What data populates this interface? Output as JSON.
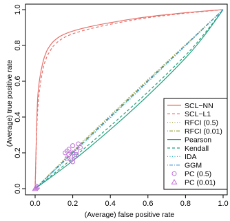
{
  "chart_data": {
    "type": "line",
    "xlabel": "(Average) false positive rate",
    "ylabel": "(Average) true positive rate",
    "xlim": [
      0,
      1
    ],
    "ylim": [
      0,
      1
    ],
    "x_ticks": [
      "0.0",
      "0.2",
      "0.4",
      "0.6",
      "0.8",
      "1.0"
    ],
    "y_ticks": [
      "0.0",
      "0.2",
      "0.4",
      "0.6",
      "0.8",
      "1.0"
    ],
    "grid": false,
    "legend_position": "bottom-right",
    "series": [
      {
        "name": "SCL−NN",
        "kind": "line",
        "color": "#e8706a",
        "dash": "solid",
        "x": [
          0,
          0.01,
          0.02,
          0.04,
          0.06,
          0.08,
          0.1,
          0.14,
          0.2,
          0.3,
          0.4,
          0.5,
          0.6,
          0.7,
          0.8,
          0.9,
          1.0
        ],
        "y": [
          0,
          0.42,
          0.58,
          0.7,
          0.765,
          0.8,
          0.825,
          0.855,
          0.88,
          0.907,
          0.927,
          0.945,
          0.96,
          0.972,
          0.983,
          0.992,
          1.0
        ]
      },
      {
        "name": "SCL−L1",
        "kind": "line",
        "color": "#e8706a",
        "dash": "dashed",
        "x": [
          0,
          0.01,
          0.02,
          0.04,
          0.06,
          0.08,
          0.1,
          0.14,
          0.2,
          0.3,
          0.4,
          0.5,
          0.6,
          0.7,
          0.8,
          0.9,
          1.0
        ],
        "y": [
          0,
          0.36,
          0.52,
          0.66,
          0.73,
          0.77,
          0.8,
          0.835,
          0.865,
          0.895,
          0.918,
          0.938,
          0.955,
          0.968,
          0.98,
          0.99,
          1.0
        ]
      },
      {
        "name": "RFCI (0.5)",
        "kind": "line",
        "color": "#8f9a2e",
        "dash": "dotted",
        "x": [
          0,
          0.2,
          0.4,
          0.6,
          0.8,
          1.0
        ],
        "y": [
          0,
          0.21,
          0.41,
          0.61,
          0.805,
          1.0
        ]
      },
      {
        "name": "RFCI (0.01)",
        "kind": "line",
        "color": "#8f9a2e",
        "dash": "dotdash",
        "x": [
          0,
          0.2,
          0.4,
          0.6,
          0.8,
          1.0
        ],
        "y": [
          0,
          0.205,
          0.405,
          0.605,
          0.802,
          1.0
        ]
      },
      {
        "name": "Pearson",
        "kind": "line",
        "color": "#1fa07a",
        "dash": "solid",
        "x": [
          0,
          0.2,
          0.4,
          0.6,
          0.8,
          0.9,
          1.0
        ],
        "y": [
          0,
          0.155,
          0.33,
          0.52,
          0.73,
          0.855,
          1.0
        ]
      },
      {
        "name": "Kendall",
        "kind": "line",
        "color": "#1fa07a",
        "dash": "dashed",
        "x": [
          0,
          0.2,
          0.4,
          0.6,
          0.8,
          0.9,
          1.0
        ],
        "y": [
          0,
          0.17,
          0.35,
          0.54,
          0.745,
          0.865,
          1.0
        ]
      },
      {
        "name": "IDA",
        "kind": "line",
        "color": "#2ab0c8",
        "dash": "dotted",
        "x": [
          0,
          0.2,
          0.4,
          0.6,
          0.8,
          1.0
        ],
        "y": [
          0,
          0.195,
          0.395,
          0.595,
          0.797,
          1.0
        ]
      },
      {
        "name": "GGM",
        "kind": "line",
        "color": "#3a8fd0",
        "dash": "dotdash",
        "x": [
          0,
          0.2,
          0.4,
          0.6,
          0.8,
          1.0
        ],
        "y": [
          0,
          0.2,
          0.4,
          0.6,
          0.8,
          1.0
        ]
      },
      {
        "name": "PC (0.5)",
        "kind": "points",
        "marker": "circle",
        "color": "#c070d8",
        "x": [
          0.16,
          0.17,
          0.18,
          0.18,
          0.19,
          0.2,
          0.2,
          0.21,
          0.22,
          0.23,
          0.24,
          0.17,
          0.2,
          0.22
        ],
        "y": [
          0.2,
          0.17,
          0.22,
          0.19,
          0.16,
          0.24,
          0.2,
          0.18,
          0.21,
          0.25,
          0.23,
          0.21,
          0.15,
          0.19
        ]
      },
      {
        "name": "PC (0.01)",
        "kind": "points",
        "marker": "triangle",
        "color": "#c070d8",
        "x": [
          0,
          0.005,
          0.01
        ],
        "y": [
          0,
          0.005,
          0.012
        ]
      }
    ],
    "colors": {
      "axis": "#000000",
      "legend_border": "#000000"
    }
  }
}
